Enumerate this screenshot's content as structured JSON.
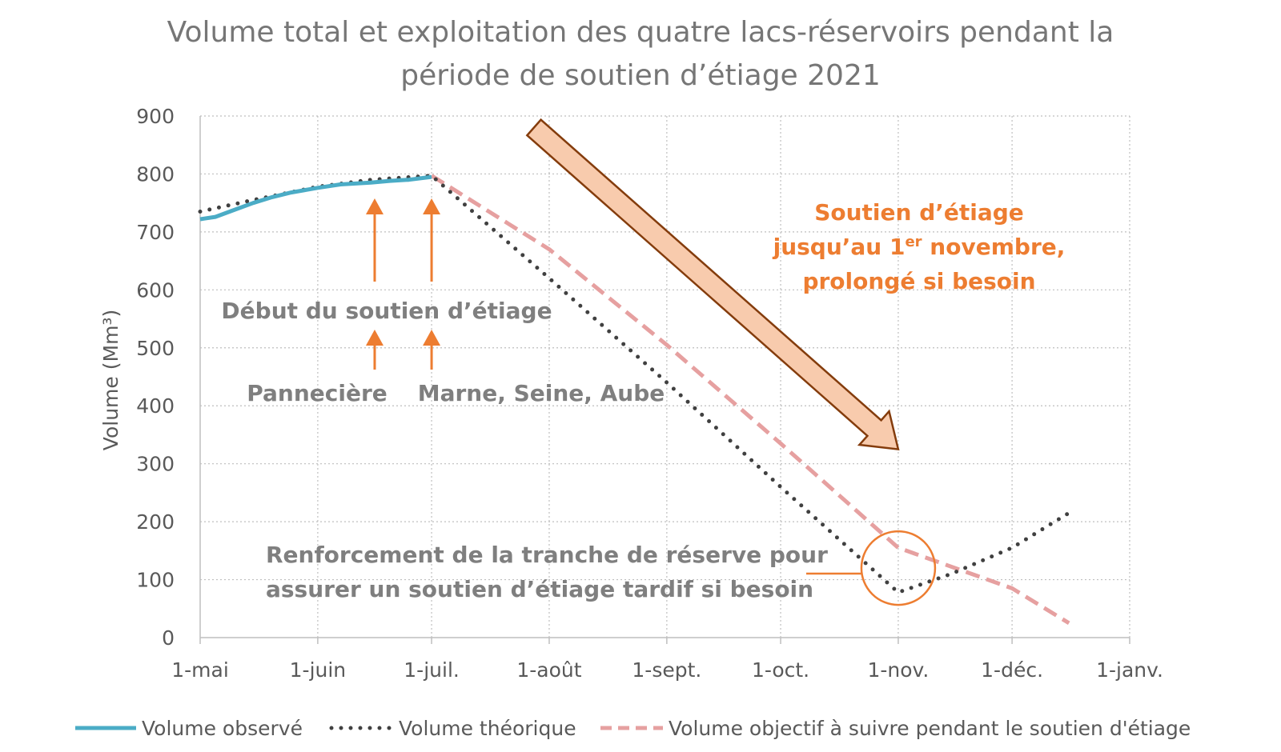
{
  "chart_data": {
    "type": "line",
    "title_line1": "Volume total et exploitation des quatre lacs-réservoirs pendant la",
    "title_line2": "période de soutien d’étiage 2021",
    "xlabel": "",
    "ylabel": "Volume (Mm³)",
    "ylim": [
      0,
      900
    ],
    "yticks": [
      "0",
      "100",
      "200",
      "300",
      "400",
      "500",
      "600",
      "700",
      "800",
      "900"
    ],
    "xlim": [
      "2021-05-01",
      "2022-01-01"
    ],
    "xticks": [
      {
        "date": "2021-05-01",
        "label": "1-mai"
      },
      {
        "date": "2021-06-01",
        "label": "1-juin"
      },
      {
        "date": "2021-07-01",
        "label": "1-juil."
      },
      {
        "date": "2021-08-01",
        "label": "1-août"
      },
      {
        "date": "2021-09-01",
        "label": "1-sept."
      },
      {
        "date": "2021-10-01",
        "label": "1-oct."
      },
      {
        "date": "2021-11-01",
        "label": "1-nov."
      },
      {
        "date": "2021-12-01",
        "label": "1-déc."
      },
      {
        "date": "2022-01-01",
        "label": "1-janv."
      }
    ],
    "grid": true,
    "legend_position": "bottom",
    "series": [
      {
        "name": "Volume observé",
        "color": "#4bacc6",
        "style": "solid",
        "points": [
          [
            "2021-05-01",
            722
          ],
          [
            "2021-05-05",
            726
          ],
          [
            "2021-05-10",
            738
          ],
          [
            "2021-05-15",
            750
          ],
          [
            "2021-05-20",
            760
          ],
          [
            "2021-05-25",
            768
          ],
          [
            "2021-06-01",
            776
          ],
          [
            "2021-06-07",
            782
          ],
          [
            "2021-06-15",
            785
          ],
          [
            "2021-06-20",
            788
          ],
          [
            "2021-06-25",
            790
          ],
          [
            "2021-07-01",
            795
          ]
        ]
      },
      {
        "name": "Volume théorique",
        "color": "#404040",
        "style": "dotted",
        "points": [
          [
            "2021-05-01",
            735
          ],
          [
            "2021-05-15",
            755
          ],
          [
            "2021-06-01",
            778
          ],
          [
            "2021-06-15",
            790
          ],
          [
            "2021-07-01",
            797
          ],
          [
            "2021-08-01",
            620
          ],
          [
            "2021-09-01",
            440
          ],
          [
            "2021-10-01",
            260
          ],
          [
            "2021-11-01",
            78
          ],
          [
            "2021-11-15",
            110
          ],
          [
            "2021-12-01",
            155
          ],
          [
            "2021-12-16",
            215
          ]
        ]
      },
      {
        "name": "Volume objectif à suivre pendant le soutien d'étiage",
        "color": "#e6a0a0",
        "style": "dashed",
        "points": [
          [
            "2021-07-01",
            797
          ],
          [
            "2021-08-01",
            670
          ],
          [
            "2021-09-01",
            505
          ],
          [
            "2021-10-01",
            335
          ],
          [
            "2021-11-01",
            155
          ],
          [
            "2021-12-01",
            85
          ],
          [
            "2021-12-16",
            25
          ]
        ]
      }
    ],
    "annotations": {
      "debut": "Début du soutien d’étiage",
      "pannecière": "Pannecière",
      "marne": "Marne, Seine, Aube",
      "soutien_line1": "Soutien d’étiage",
      "soutien_line2_pre": "jusqu’au 1",
      "soutien_line2_sup": "er",
      "soutien_line2_post": " novembre,",
      "soutien_line3": "prolongé si besoin",
      "renfort_line1": "Renforcement de la tranche de réserve pour",
      "renfort_line2": "assurer un soutien d’étiage tardif si besoin",
      "arrow_color": "#ed7d31",
      "big_arrow_fill": "#f8cbad",
      "big_arrow_stroke": "#843c0c",
      "circle_date": "2021-11-01",
      "circle_value": 120,
      "arrow_pannecière_date": "2021-06-16",
      "arrow_marne_date": "2021-07-01",
      "big_arrow_start": [
        "2021-07-28",
        880
      ],
      "big_arrow_end": [
        "2021-11-01",
        325
      ]
    }
  }
}
